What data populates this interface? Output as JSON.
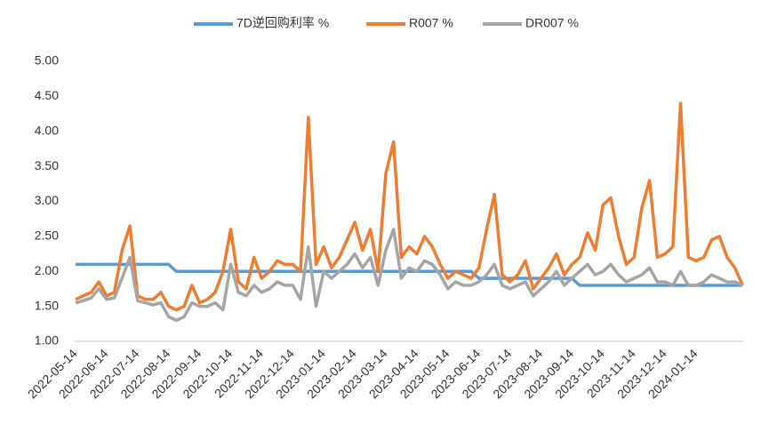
{
  "chart_data": {
    "type": "line",
    "categories": [
      "2022-05-14",
      null,
      null,
      null,
      "2022-06-14",
      null,
      null,
      null,
      "2022-07-14",
      null,
      null,
      null,
      "2022-08-14",
      null,
      null,
      null,
      "2022-09-14",
      null,
      null,
      null,
      "2022-10-14",
      null,
      null,
      null,
      "2022-11-14",
      null,
      null,
      null,
      "2022-12-14",
      null,
      null,
      null,
      "2023-01-14",
      null,
      null,
      null,
      "2023-02-14",
      null,
      null,
      null,
      "2023-03-14",
      null,
      null,
      null,
      "2023-04-14",
      null,
      null,
      null,
      "2023-05-14",
      null,
      null,
      null,
      "2023-06-14",
      null,
      null,
      null,
      "2023-07-14",
      null,
      null,
      null,
      "2023-08-14",
      null,
      null,
      null,
      "2023-09-14",
      null,
      null,
      null,
      "2023-10-14",
      null,
      null,
      null,
      "2023-11-14",
      null,
      null,
      null,
      "2023-12-14",
      null,
      null,
      null,
      "2024-01-14",
      null,
      null,
      null,
      null,
      null,
      null
    ],
    "series": [
      {
        "name": "7D逆回购利率 %",
        "color": "#5b9bd5",
        "values": [
          2.1,
          2.1,
          2.1,
          2.1,
          2.1,
          2.1,
          2.1,
          2.1,
          2.1,
          2.1,
          2.1,
          2.1,
          2.1,
          2.0,
          2.0,
          2.0,
          2.0,
          2.0,
          2.0,
          2.0,
          2.0,
          2.0,
          2.0,
          2.0,
          2.0,
          2.0,
          2.0,
          2.0,
          2.0,
          2.0,
          2.0,
          2.0,
          2.0,
          2.0,
          2.0,
          2.0,
          2.0,
          2.0,
          2.0,
          2.0,
          2.0,
          2.0,
          2.0,
          2.0,
          2.0,
          2.0,
          2.0,
          2.0,
          2.0,
          2.0,
          2.0,
          2.0,
          1.9,
          1.9,
          1.9,
          1.9,
          1.9,
          1.9,
          1.9,
          1.9,
          1.9,
          1.9,
          1.9,
          1.9,
          1.9,
          1.8,
          1.8,
          1.8,
          1.8,
          1.8,
          1.8,
          1.8,
          1.8,
          1.8,
          1.8,
          1.8,
          1.8,
          1.8,
          1.8,
          1.8,
          1.8,
          1.8,
          1.8,
          1.8,
          1.8,
          1.8,
          1.8
        ]
      },
      {
        "name": "R007 %",
        "color": "#ed7d31",
        "values": [
          1.6,
          1.65,
          1.7,
          1.85,
          1.65,
          1.7,
          2.3,
          2.65,
          1.65,
          1.6,
          1.6,
          1.7,
          1.5,
          1.45,
          1.5,
          1.8,
          1.55,
          1.6,
          1.7,
          2.0,
          2.6,
          1.85,
          1.75,
          2.2,
          1.9,
          2.0,
          2.15,
          2.1,
          2.1,
          2.0,
          4.2,
          2.1,
          2.35,
          2.05,
          2.2,
          2.45,
          2.7,
          2.3,
          2.6,
          2.0,
          3.4,
          3.85,
          2.2,
          2.35,
          2.25,
          2.5,
          2.35,
          2.1,
          1.9,
          2.0,
          1.95,
          1.9,
          2.05,
          2.6,
          3.1,
          1.95,
          1.85,
          1.95,
          2.15,
          1.75,
          1.9,
          2.05,
          2.25,
          1.95,
          2.1,
          2.2,
          2.55,
          2.3,
          2.95,
          3.05,
          2.5,
          2.1,
          2.2,
          2.9,
          3.3,
          2.2,
          2.25,
          2.35,
          4.4,
          2.2,
          2.15,
          2.2,
          2.45,
          2.5,
          2.2,
          2.05,
          1.8
        ]
      },
      {
        "name": "DR007 %",
        "color": "#a5a5a5",
        "values": [
          1.55,
          1.58,
          1.62,
          1.75,
          1.6,
          1.62,
          1.9,
          2.2,
          1.58,
          1.55,
          1.52,
          1.55,
          1.35,
          1.3,
          1.35,
          1.55,
          1.5,
          1.5,
          1.55,
          1.45,
          2.1,
          1.7,
          1.65,
          1.8,
          1.7,
          1.75,
          1.85,
          1.8,
          1.8,
          1.6,
          2.35,
          1.5,
          2.0,
          1.9,
          2.0,
          2.1,
          2.25,
          2.05,
          2.2,
          1.8,
          2.3,
          2.6,
          1.9,
          2.05,
          2.0,
          2.15,
          2.1,
          1.95,
          1.75,
          1.85,
          1.8,
          1.8,
          1.85,
          1.95,
          2.1,
          1.8,
          1.75,
          1.8,
          1.85,
          1.65,
          1.75,
          1.85,
          2.0,
          1.8,
          1.9,
          2.0,
          2.1,
          1.95,
          2.0,
          2.1,
          1.95,
          1.85,
          1.9,
          1.95,
          2.05,
          1.85,
          1.85,
          1.8,
          2.0,
          1.8,
          1.8,
          1.85,
          1.95,
          1.9,
          1.85,
          1.85,
          1.8
        ]
      }
    ],
    "ylim": [
      1.0,
      5.0
    ],
    "yticks": [
      {
        "value": 1,
        "label": "1.00"
      },
      {
        "value": 1.5,
        "label": "1.50"
      },
      {
        "value": 2,
        "label": "2.00"
      },
      {
        "value": 2.5,
        "label": "2.50"
      },
      {
        "value": 3,
        "label": "3.00"
      },
      {
        "value": 3.5,
        "label": "3.50"
      },
      {
        "value": 4,
        "label": "4.00"
      },
      {
        "value": 4.5,
        "label": "4.50"
      },
      {
        "value": 5,
        "label": "5.00"
      }
    ],
    "legend": "top"
  }
}
